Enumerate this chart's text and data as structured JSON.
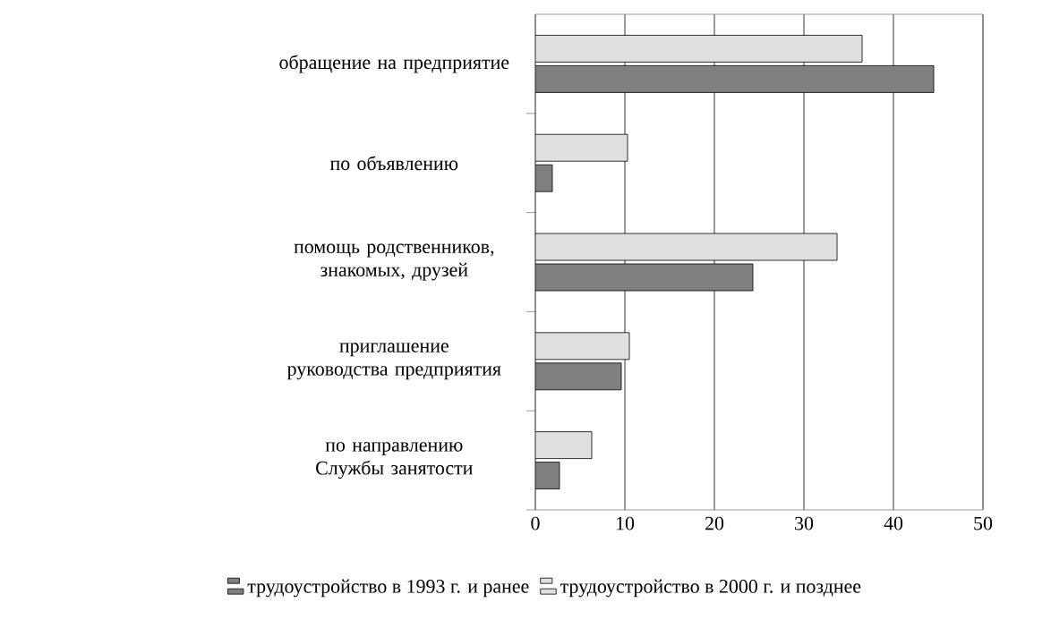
{
  "chart_data": {
    "type": "bar",
    "orientation": "horizontal",
    "categories": [
      "обращение на предприятие",
      "по объявлению",
      "помощь родственников, знакомых, друзей",
      "приглашение руководства предприятия",
      "по направлению Службы занятости"
    ],
    "series": [
      {
        "name": "трудоустройство в 1993 г. и ранее",
        "color": "#808080",
        "values": [
          44.5,
          1.9,
          24.3,
          9.6,
          2.7
        ]
      },
      {
        "name": "трудоустройство в 2000 г. и позднее",
        "color": "#e0e0e0",
        "values": [
          36.5,
          10.3,
          33.7,
          10.5,
          6.3
        ]
      }
    ],
    "xlim": [
      0,
      50
    ],
    "xticks": [
      0,
      10,
      20,
      30,
      40,
      50
    ],
    "grid": "x",
    "legend": "bottom"
  }
}
